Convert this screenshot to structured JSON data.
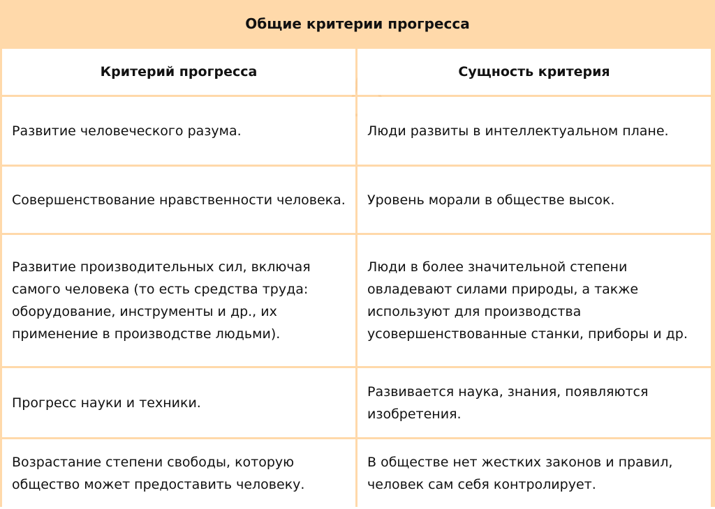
{
  "title": "Общие критерии прогресса",
  "headers": [
    "Критерий прогресса",
    "Сущность критерия"
  ],
  "rows": [
    {
      "criterion": "Развитие человеческого разума.",
      "essence": "Люди развиты в интеллектуальном плане."
    },
    {
      "criterion": "Совершенствование нравственности человека.",
      "essence": "Уровень морали в обществе высок."
    },
    {
      "criterion": "Развитие производительных сил, включая самого человека (то есть средства труда: оборудование, инструменты и др., их применение в производстве людьми).",
      "essence": "Люди в более значительной степени овладевают силами природы, а также используют для производства усовершенствованные станки, приборы и др."
    },
    {
      "criterion": "Прогресс науки и техники.",
      "essence": "Развивается наука, знания, появляются изобретения."
    },
    {
      "criterion": "Возрастание степени свободы, которую общество может предоставить человеку.",
      "essence": "В обществе нет жестких законов и правил, человек сам себя контролирует."
    }
  ],
  "colors": {
    "accent": "#FFD9AA"
  }
}
